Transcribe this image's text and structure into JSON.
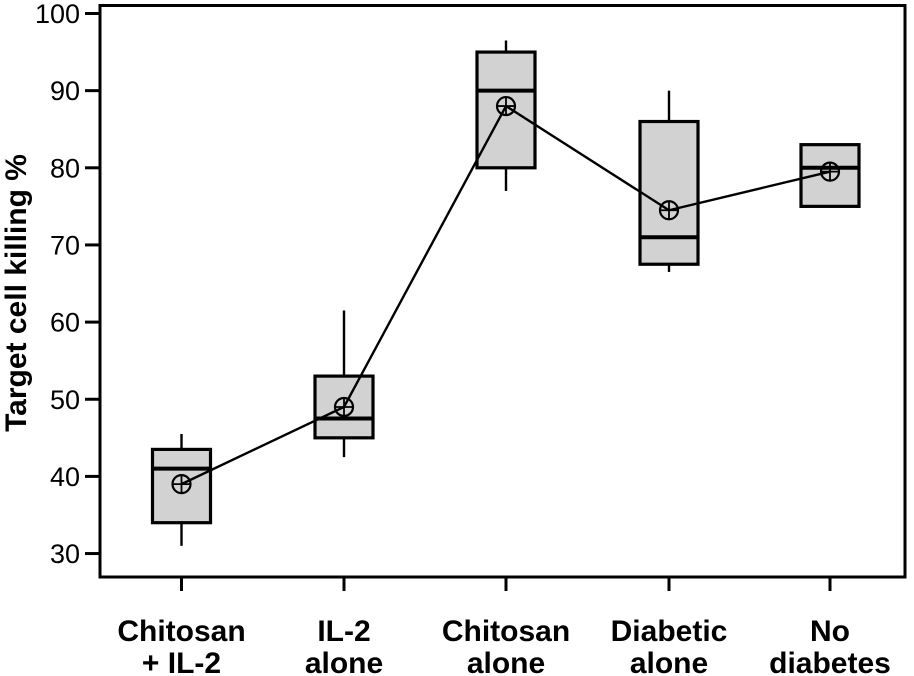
{
  "figure": {
    "kind": "boxplot-figure",
    "background": "#ffffff"
  },
  "chart_data": {
    "type": "box",
    "title": "",
    "xlabel": "",
    "ylabel": "Target cell killing %",
    "ylim": [
      27,
      101
    ],
    "yticks": [
      100,
      90,
      80,
      70,
      60,
      50,
      40,
      30
    ],
    "grid": false,
    "legend": "none",
    "frame": true,
    "categories": [
      [
        "Chitosan",
        "+ IL-2"
      ],
      [
        "IL-2",
        "alone"
      ],
      [
        "Chitosan",
        "alone"
      ],
      [
        "Diabetic",
        "alone"
      ],
      [
        "No",
        "diabetes"
      ]
    ],
    "series": [
      {
        "name": "Chitosan + IL-2",
        "whisker_low": 31,
        "q1": 34,
        "median": 41,
        "q3": 43.5,
        "whisker_high": 45.5,
        "mean": 39
      },
      {
        "name": "IL-2 alone",
        "whisker_low": 42.5,
        "q1": 45,
        "median": 47.5,
        "q3": 53,
        "whisker_high": 61.5,
        "mean": 49
      },
      {
        "name": "Chitosan alone",
        "whisker_low": 77,
        "q1": 80,
        "median": 90,
        "q3": 95,
        "whisker_high": 96.5,
        "mean": 88
      },
      {
        "name": "Diabetic alone",
        "whisker_low": 66.5,
        "q1": 67.5,
        "median": 71,
        "q3": 86,
        "whisker_high": 90,
        "mean": 74.5
      },
      {
        "name": "No diabetes",
        "whisker_low": null,
        "q1": 75,
        "median": 80,
        "q3": 83,
        "whisker_high": null,
        "mean": 79.5
      }
    ],
    "mean_marker": "circle-plus",
    "mean_line_connects_groups": true,
    "colors": {
      "box_fill": "#d2d2d2",
      "stroke": "#000000",
      "background": "#ffffff"
    }
  }
}
